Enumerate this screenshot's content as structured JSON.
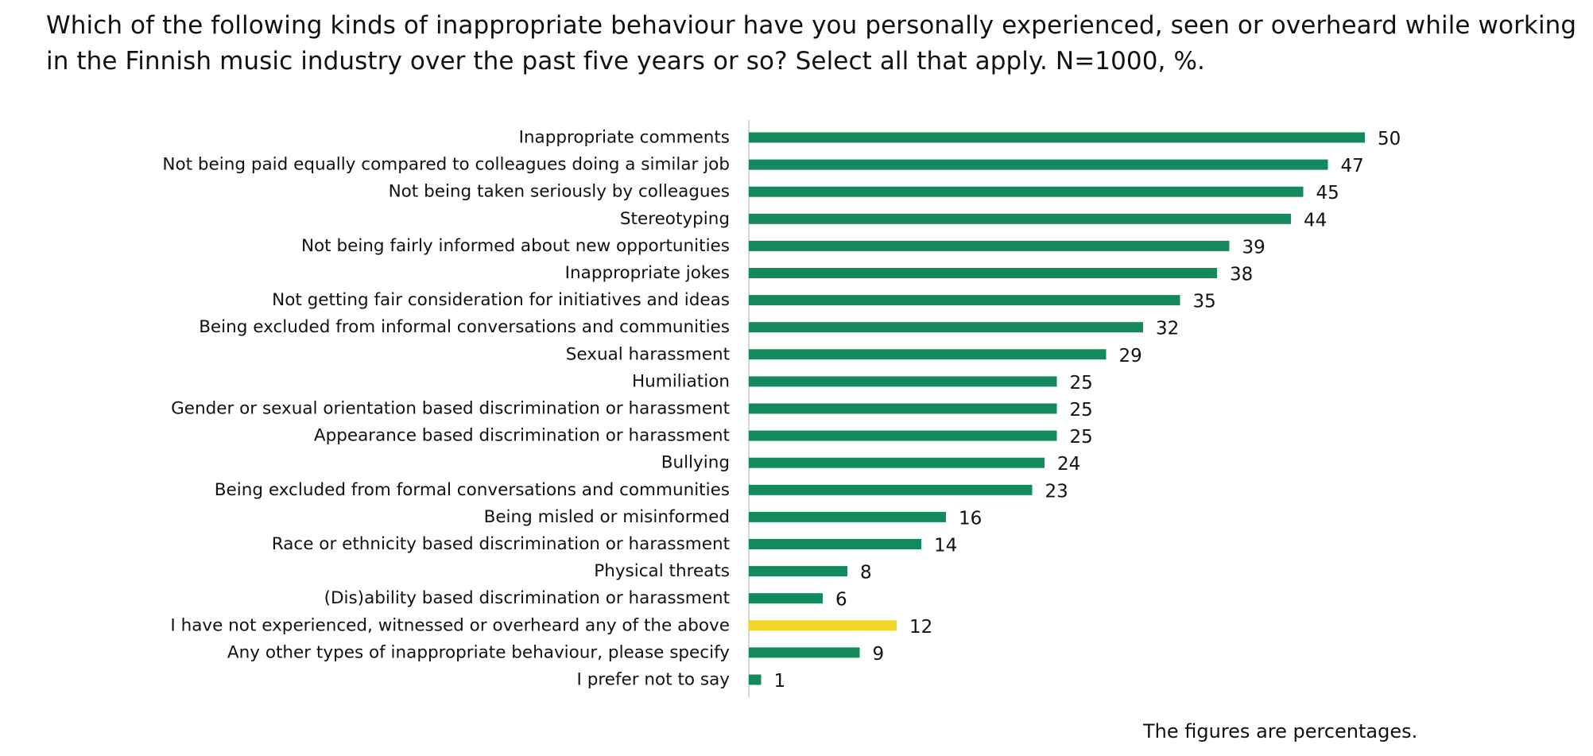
{
  "title": "Which of the following kinds of inappropriate behaviour have you personally experienced, seen or overheard while working in the Finnish music industry over the past five years or so? Select all that apply. N=1000, %.",
  "note": "The figures are percentages.",
  "colors": {
    "bar": "#128a5c",
    "highlight": "#f2d62a",
    "axis": "#c8c8c8",
    "text": "#111111"
  },
  "chart_data": {
    "type": "bar",
    "orientation": "horizontal",
    "title": "Which of the following kinds of inappropriate behaviour have you personally experienced, seen or overheard while working in the Finnish music industry over the past five years or so? Select all that apply. N=1000, %.",
    "xlabel": "",
    "ylabel": "",
    "xlim": [
      0,
      50
    ],
    "grid": false,
    "categories": [
      "Inappropriate comments",
      "Not being paid equally compared to colleagues doing a similar job",
      "Not being taken seriously by colleagues",
      "Stereotyping",
      "Not being fairly informed about new opportunities",
      "Inappropriate jokes",
      "Not getting fair consideration for initiatives and ideas",
      "Being excluded from informal conversations and communities",
      "Sexual harassment",
      "Humiliation",
      "Gender or sexual orientation based discrimination or harassment",
      "Appearance based discrimination or harassment",
      "Bullying",
      "Being excluded from formal conversations and communities",
      "Being misled or misinformed",
      "Race or ethnicity based discrimination or harassment",
      "Physical threats",
      "(Dis)ability based discrimination or harassment",
      "I have not experienced, witnessed or overheard any of the above",
      "Any other types of inappropriate behaviour, please specify",
      "I prefer not to say"
    ],
    "values": [
      50,
      47,
      45,
      44,
      39,
      38,
      35,
      32,
      29,
      25,
      25,
      25,
      24,
      23,
      16,
      14,
      8,
      6,
      12,
      9,
      1
    ],
    "highlighted": [
      "I have not experienced, witnessed or overheard any of the above"
    ]
  }
}
